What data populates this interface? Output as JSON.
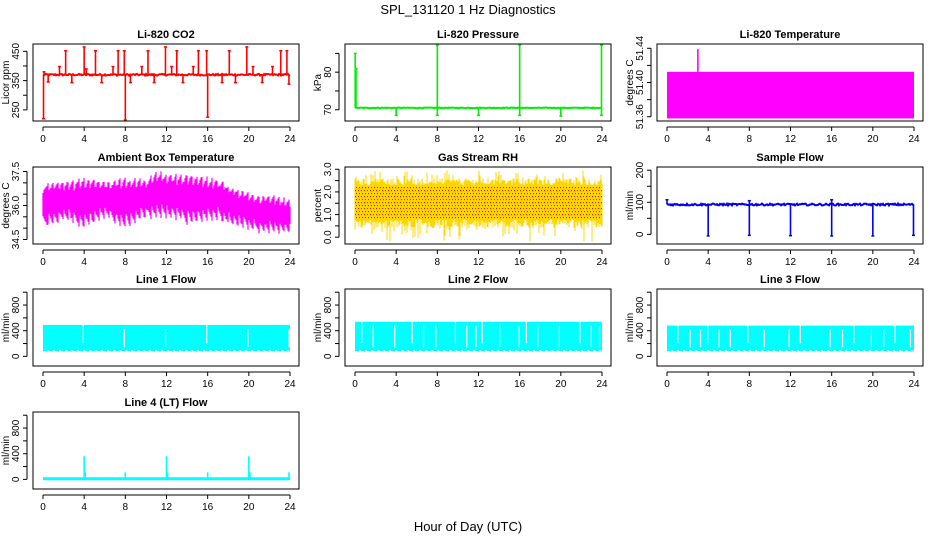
{
  "figure": {
    "title": "SPL_131120  1 Hz Diagnostics",
    "xlabel": "Hour of Day (UTC)"
  },
  "chart_data": [
    {
      "type": "line",
      "title": "Li-820 CO2",
      "ylabel": "Licor ppm",
      "color": "#ff0000",
      "xlim": [
        0,
        24
      ],
      "ylim": [
        212,
        475
      ],
      "xticks": [
        0,
        4,
        8,
        12,
        16,
        20,
        24
      ],
      "yticks": [
        250,
        300,
        350,
        400,
        450
      ],
      "ytick_labels": [
        "250",
        "",
        "350",
        "",
        "450"
      ],
      "baseline": 370,
      "noise": 3,
      "spikes": [
        {
          "x": 0.05,
          "y": 220
        },
        {
          "x": 0.1,
          "y": 380
        },
        {
          "x": 0.5,
          "y": 345
        },
        {
          "x": 1.6,
          "y": 398
        },
        {
          "x": 2.2,
          "y": 452
        },
        {
          "x": 2.8,
          "y": 343
        },
        {
          "x": 4.0,
          "y": 465
        },
        {
          "x": 4.2,
          "y": 390
        },
        {
          "x": 5.1,
          "y": 452
        },
        {
          "x": 5.7,
          "y": 343
        },
        {
          "x": 6.8,
          "y": 398
        },
        {
          "x": 7.3,
          "y": 452
        },
        {
          "x": 7.9,
          "y": 452
        },
        {
          "x": 8.0,
          "y": 215
        },
        {
          "x": 8.5,
          "y": 343
        },
        {
          "x": 9.6,
          "y": 398
        },
        {
          "x": 10.2,
          "y": 452
        },
        {
          "x": 10.8,
          "y": 343
        },
        {
          "x": 11.9,
          "y": 465
        },
        {
          "x": 12.5,
          "y": 398
        },
        {
          "x": 13.0,
          "y": 452
        },
        {
          "x": 13.6,
          "y": 343
        },
        {
          "x": 14.6,
          "y": 398
        },
        {
          "x": 15.1,
          "y": 452
        },
        {
          "x": 15.9,
          "y": 452
        },
        {
          "x": 16.0,
          "y": 225
        },
        {
          "x": 17.4,
          "y": 343
        },
        {
          "x": 18.1,
          "y": 452
        },
        {
          "x": 18.7,
          "y": 343
        },
        {
          "x": 19.8,
          "y": 465
        },
        {
          "x": 20.4,
          "y": 398
        },
        {
          "x": 21.3,
          "y": 343
        },
        {
          "x": 22.3,
          "y": 398
        },
        {
          "x": 23.1,
          "y": 452
        },
        {
          "x": 23.7,
          "y": 452
        },
        {
          "x": 23.9,
          "y": 338
        }
      ]
    },
    {
      "type": "line",
      "title": "Li-820 Pressure",
      "ylabel": "kPa",
      "color": "#00ee00",
      "xlim": [
        0,
        24
      ],
      "ylim": [
        67,
        87.5
      ],
      "xticks": [
        0,
        4,
        8,
        12,
        16,
        20,
        24
      ],
      "yticks": [
        70,
        75,
        80,
        85
      ],
      "ytick_labels": [
        "70",
        "",
        "80",
        ""
      ],
      "baseline": 70.5,
      "noise": 0.1,
      "spikes": [
        {
          "x": 0.02,
          "y": 85
        },
        {
          "x": 0.1,
          "y": 81
        },
        {
          "x": 4.0,
          "y": 68.5
        },
        {
          "x": 8.0,
          "y": 87.3
        },
        {
          "x": 8.0,
          "y": 68.5
        },
        {
          "x": 12.0,
          "y": 68.5
        },
        {
          "x": 16.0,
          "y": 87.3
        },
        {
          "x": 16.0,
          "y": 68.5
        },
        {
          "x": 20.0,
          "y": 68.3
        },
        {
          "x": 23.95,
          "y": 87.3
        },
        {
          "x": 23.95,
          "y": 68.5
        }
      ]
    },
    {
      "type": "area",
      "title": "Li-820 Temperature",
      "ylabel": "degrees C",
      "color": "#ff00ff",
      "xlim": [
        0,
        24
      ],
      "ylim": [
        51.355,
        51.445
      ],
      "xticks": [
        0,
        4,
        8,
        12,
        16,
        20,
        24
      ],
      "yticks": [
        51.36,
        51.38,
        51.4,
        51.42,
        51.44
      ],
      "ytick_labels": [
        "51.36",
        "",
        "51.40",
        "",
        "51.44"
      ],
      "band": [
        51.358,
        51.4125
      ],
      "spikes": [
        {
          "x": 3.0,
          "y": 51.439
        }
      ]
    },
    {
      "type": "area",
      "title": "Ambient Box Temperature",
      "ylabel": "degrees C",
      "color": "#ff00ff",
      "xlim": [
        0,
        24
      ],
      "ylim": [
        34.3,
        37.7
      ],
      "xticks": [
        0,
        4,
        8,
        12,
        16,
        20,
        24
      ],
      "yticks": [
        34.5,
        35.0,
        35.5,
        36.0,
        36.5,
        37.0,
        37.5
      ],
      "ytick_labels": [
        "34.5",
        "",
        "",
        "36.0",
        "",
        "",
        "37.5"
      ],
      "envelope_hours": [
        0,
        2,
        4,
        6,
        8,
        10,
        11,
        14,
        17,
        18,
        20,
        21,
        22,
        24
      ],
      "envelope_upper": [
        37.0,
        37.1,
        37.2,
        37.1,
        37.2,
        37.2,
        37.5,
        37.4,
        37.2,
        36.9,
        36.6,
        36.4,
        36.5,
        36.3
      ],
      "envelope_lower": [
        35.0,
        35.3,
        35.0,
        35.4,
        35.0,
        35.4,
        35.5,
        35.2,
        35.3,
        35.2,
        34.9,
        34.8,
        34.8,
        34.7
      ],
      "sawtooth_period_hours": 0.5
    },
    {
      "type": "area",
      "title": "Gas Stream RH",
      "ylabel": "percent",
      "color": "#ffd700",
      "secondary_color": "#dd0000",
      "xlim": [
        0,
        24
      ],
      "ylim": [
        -0.3,
        3.1
      ],
      "xticks": [
        0,
        4,
        8,
        12,
        16,
        20,
        24
      ],
      "yticks": [
        0.0,
        0.5,
        1.0,
        1.5,
        2.0,
        2.5,
        3.0
      ],
      "ytick_labels": [
        "0.0",
        "",
        "1.0",
        "",
        "2.0",
        "",
        "3.0"
      ],
      "core_band": [
        0.8,
        2.3
      ],
      "spike_range": [
        -0.2,
        2.95
      ]
    },
    {
      "type": "line",
      "title": "Sample Flow",
      "ylabel": "ml/min",
      "color": "#0000ee",
      "xlim": [
        0,
        24
      ],
      "ylim": [
        -30,
        210
      ],
      "xticks": [
        0,
        4,
        8,
        12,
        16,
        20,
        24
      ],
      "yticks": [
        0,
        50,
        100,
        150,
        200
      ],
      "ytick_labels": [
        "0",
        "",
        "100",
        "",
        "200"
      ],
      "baseline": 93,
      "noise": 3,
      "spikes": [
        {
          "x": 0.0,
          "y": 108
        },
        {
          "x": 4.0,
          "y": -5
        },
        {
          "x": 8.0,
          "y": -3
        },
        {
          "x": 8.0,
          "y": 105
        },
        {
          "x": 12.0,
          "y": -4
        },
        {
          "x": 16.0,
          "y": -5
        },
        {
          "x": 16.0,
          "y": 108
        },
        {
          "x": 20.0,
          "y": -5
        },
        {
          "x": 23.95,
          "y": -3
        }
      ]
    },
    {
      "type": "area",
      "title": "Line 1 Flow",
      "ylabel": "ml/min",
      "color": "#00ffff",
      "xlim": [
        0,
        24
      ],
      "ylim": [
        -150,
        1050
      ],
      "xticks": [
        0,
        4,
        8,
        12,
        16,
        20,
        24
      ],
      "yticks": [
        0,
        200,
        400,
        600,
        800,
        1000
      ],
      "ytick_labels": [
        "0",
        "",
        "400",
        "",
        "800",
        ""
      ],
      "band": [
        80,
        490
      ],
      "gaps": [
        3.85,
        7.85,
        11.85,
        15.85,
        19.85,
        23.85
      ]
    },
    {
      "type": "area",
      "title": "Line 2 Flow",
      "ylabel": "ml/min",
      "color": "#00ffff",
      "xlim": [
        0,
        24
      ],
      "ylim": [
        -150,
        1050
      ],
      "xticks": [
        0,
        4,
        8,
        12,
        16,
        20,
        24
      ],
      "yticks": [
        0,
        200,
        400,
        600,
        800,
        1000
      ],
      "ytick_labels": [
        "0",
        "",
        "400",
        "",
        "800",
        ""
      ],
      "band": [
        80,
        540
      ],
      "gaps": [
        0.6,
        1.7,
        3.8,
        5.5,
        6.6,
        7.8,
        9.7,
        10.8,
        11.7,
        12.3,
        14.0,
        15.9,
        16.6,
        17.7,
        19.8,
        21.8,
        22.9,
        23.7
      ]
    },
    {
      "type": "area",
      "title": "Line 3 Flow",
      "ylabel": "ml/min",
      "color": "#00ffff",
      "xlim": [
        0,
        24
      ],
      "ylim": [
        -150,
        1050
      ],
      "xticks": [
        0,
        4,
        8,
        12,
        16,
        20,
        24
      ],
      "yticks": [
        0,
        200,
        400,
        600,
        800,
        1000
      ],
      "ytick_labels": [
        "0",
        "",
        "400",
        "",
        "800",
        ""
      ],
      "band": [
        80,
        480
      ],
      "gaps": [
        1.0,
        2.2,
        3.2,
        3.9,
        5.0,
        6.1,
        7.8,
        9.4,
        11.8,
        12.9,
        15.8,
        17.0,
        18.1,
        19.8,
        21.0,
        22.1,
        23.6
      ]
    },
    {
      "type": "line",
      "title": "Line 4 (LT) Flow",
      "ylabel": "ml/min",
      "color": "#00ffff",
      "xlim": [
        0,
        24
      ],
      "ylim": [
        -150,
        1050
      ],
      "xticks": [
        0,
        4,
        8,
        12,
        16,
        20,
        24
      ],
      "yticks": [
        0,
        200,
        400,
        600,
        800,
        1000
      ],
      "ytick_labels": [
        "0",
        "",
        "400",
        "",
        "800",
        ""
      ],
      "baseline": 10,
      "noise": 0,
      "spikes": [
        {
          "x": 4.0,
          "y": 360
        },
        {
          "x": 4.1,
          "y": 110
        },
        {
          "x": 8.0,
          "y": 110
        },
        {
          "x": 12.0,
          "y": 360
        },
        {
          "x": 12.1,
          "y": 110
        },
        {
          "x": 16.0,
          "y": 110
        },
        {
          "x": 20.0,
          "y": 360
        },
        {
          "x": 20.1,
          "y": 110
        },
        {
          "x": 23.9,
          "y": 110
        }
      ]
    }
  ]
}
